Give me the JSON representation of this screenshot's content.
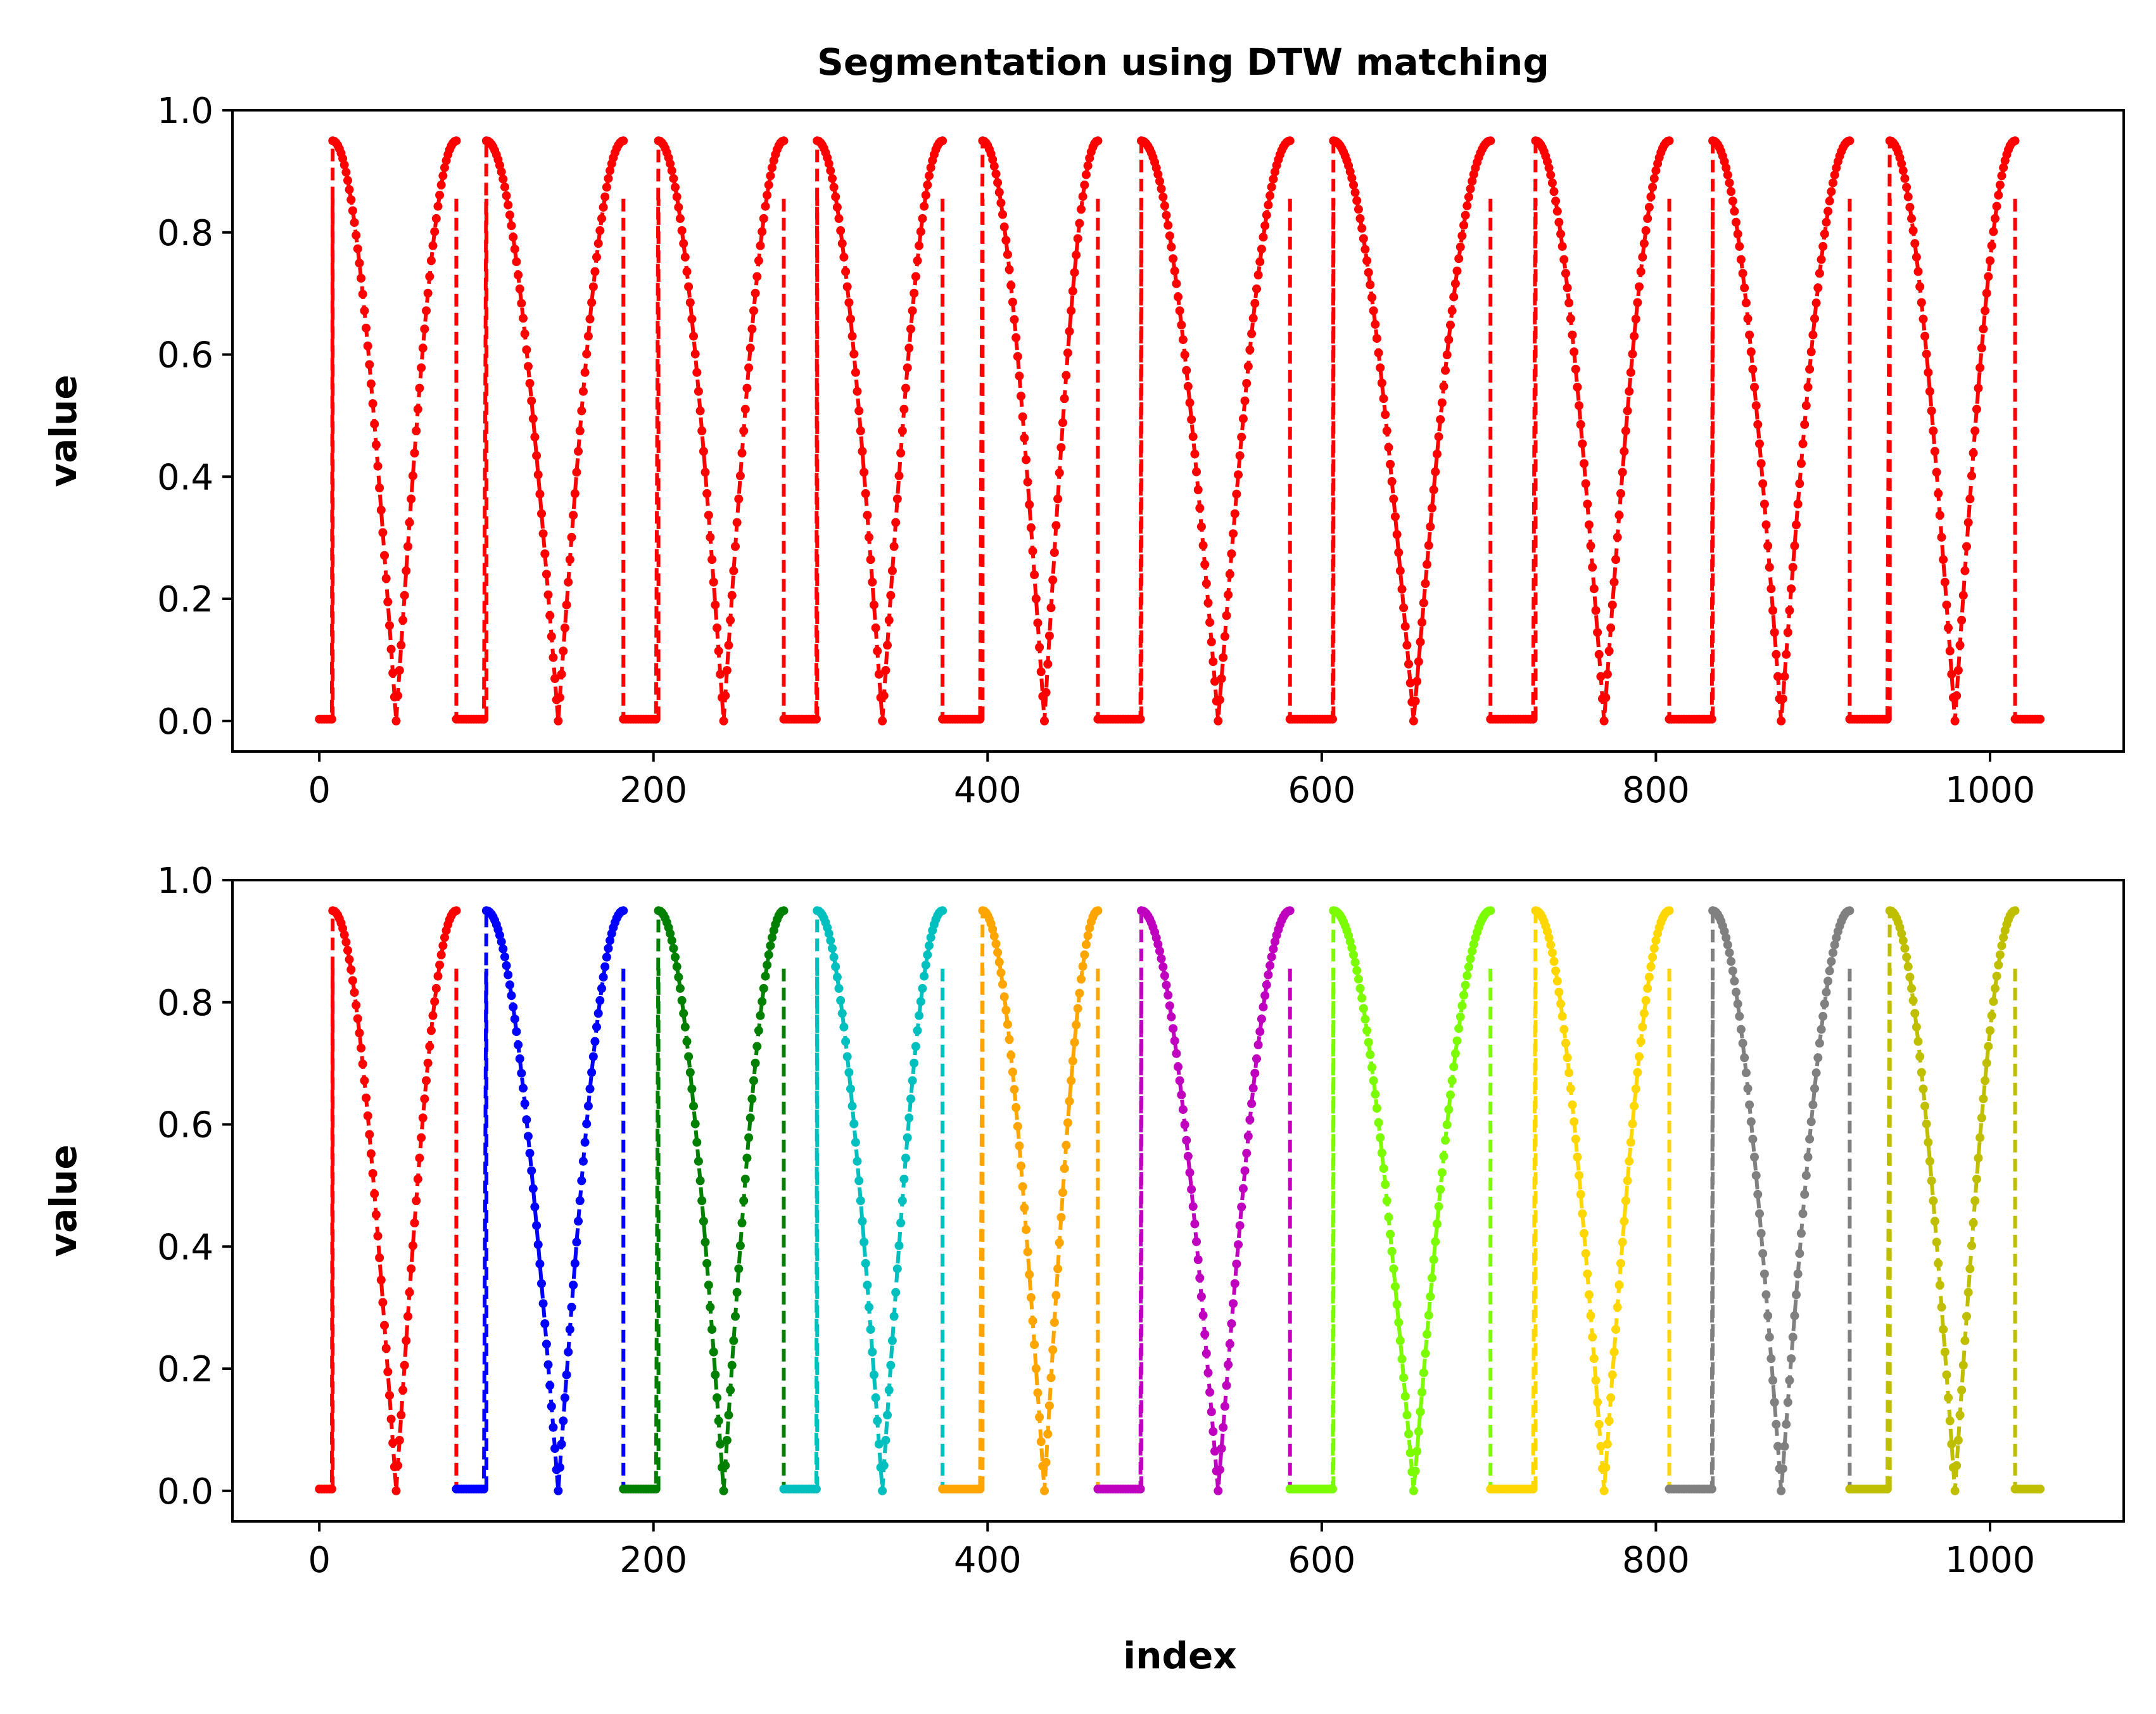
{
  "figure": {
    "title": "Segmentation using DTW matching",
    "xlabel": "index",
    "ylabel": "value"
  },
  "chart_data": [
    {
      "type": "line",
      "panel": "top",
      "title": "Segmentation using DTW matching",
      "xlabel": "",
      "ylabel": "value",
      "xlim": [
        -52,
        1080
      ],
      "ylim": [
        -0.05,
        1.0
      ],
      "xticks": [
        0,
        200,
        400,
        600,
        800,
        1000
      ],
      "xtick_labels": [
        "0",
        "200",
        "400",
        "600",
        "800",
        "1000"
      ],
      "yticks": [
        0.0,
        0.2,
        0.4,
        0.6,
        0.8,
        1.0
      ],
      "ytick_labels": [
        "0.0",
        "0.2",
        "0.4",
        "0.6",
        "0.8",
        "1.0"
      ],
      "grid": false,
      "marker": "dot",
      "linestyle": "dashed",
      "color_mode": "single",
      "color": "#ff0000",
      "peak": 0.95,
      "segments": [
        {
          "gap_start": 0,
          "rise": 8,
          "trough": 46,
          "end": 82
        },
        {
          "gap_start": 82,
          "rise": 100,
          "trough": 143,
          "end": 182
        },
        {
          "gap_start": 182,
          "rise": 203,
          "trough": 242,
          "end": 278
        },
        {
          "gap_start": 278,
          "rise": 298,
          "trough": 337,
          "end": 373
        },
        {
          "gap_start": 373,
          "rise": 397,
          "trough": 434,
          "end": 466
        },
        {
          "gap_start": 466,
          "rise": 492,
          "trough": 538,
          "end": 581
        },
        {
          "gap_start": 581,
          "rise": 607,
          "trough": 655,
          "end": 701
        },
        {
          "gap_start": 701,
          "rise": 728,
          "trough": 769,
          "end": 808
        },
        {
          "gap_start": 808,
          "rise": 834,
          "trough": 875,
          "end": 916
        },
        {
          "gap_start": 916,
          "rise": 940,
          "trough": 979,
          "end": 1015
        },
        {
          "gap_start": 1015,
          "rise": 1030,
          "trough": null,
          "end": 1030
        }
      ]
    },
    {
      "type": "line",
      "panel": "bottom",
      "title": "",
      "xlabel": "index",
      "ylabel": "value",
      "xlim": [
        -52,
        1080
      ],
      "ylim": [
        -0.05,
        1.0
      ],
      "xticks": [
        0,
        200,
        400,
        600,
        800,
        1000
      ],
      "xtick_labels": [
        "0",
        "200",
        "400",
        "600",
        "800",
        "1000"
      ],
      "yticks": [
        0.0,
        0.2,
        0.4,
        0.6,
        0.8,
        1.0
      ],
      "ytick_labels": [
        "0.0",
        "0.2",
        "0.4",
        "0.6",
        "0.8",
        "1.0"
      ],
      "grid": false,
      "marker": "dot",
      "linestyle": "dashed",
      "color_mode": "per-segment",
      "peak": 0.95,
      "segments": [
        {
          "gap_start": 0,
          "rise": 8,
          "trough": 46,
          "end": 82,
          "color": "#ff0000"
        },
        {
          "gap_start": 82,
          "rise": 100,
          "trough": 143,
          "end": 182,
          "color": "#0000ff"
        },
        {
          "gap_start": 182,
          "rise": 203,
          "trough": 242,
          "end": 278,
          "color": "#008000"
        },
        {
          "gap_start": 278,
          "rise": 298,
          "trough": 337,
          "end": 373,
          "color": "#00bfbf"
        },
        {
          "gap_start": 373,
          "rise": 397,
          "trough": 434,
          "end": 466,
          "color": "#ffa500"
        },
        {
          "gap_start": 466,
          "rise": 492,
          "trough": 538,
          "end": 581,
          "color": "#bf00bf"
        },
        {
          "gap_start": 581,
          "rise": 607,
          "trough": 655,
          "end": 701,
          "color": "#7cfc00"
        },
        {
          "gap_start": 701,
          "rise": 728,
          "trough": 769,
          "end": 808,
          "color": "#ffd700"
        },
        {
          "gap_start": 808,
          "rise": 834,
          "trough": 875,
          "end": 916,
          "color": "#808080"
        },
        {
          "gap_start": 916,
          "rise": 940,
          "trough": 979,
          "end": 1015,
          "color": "#bfbf00"
        },
        {
          "gap_start": 1015,
          "rise": 1030,
          "trough": null,
          "end": 1030,
          "color": "#bfbf00"
        }
      ]
    }
  ]
}
